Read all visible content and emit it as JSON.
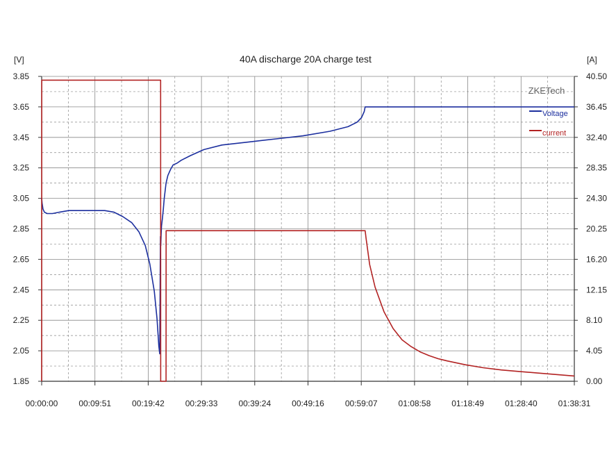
{
  "chart_data": {
    "type": "line",
    "title": "40A discharge 20A charge test",
    "left_unit": "[V]",
    "right_unit": "[A]",
    "watermark": "ZKETech",
    "x_ticks": [
      "00:00:00",
      "00:09:51",
      "00:19:42",
      "00:29:33",
      "00:39:24",
      "00:49:16",
      "00:59:07",
      "01:08:58",
      "01:18:49",
      "01:28:40",
      "01:38:31"
    ],
    "x_max_seconds": 5911,
    "y_left_ticks": [
      "3.85",
      "3.65",
      "3.45",
      "3.25",
      "3.05",
      "2.85",
      "2.65",
      "2.45",
      "2.25",
      "2.05",
      "1.85"
    ],
    "y_left_range": [
      1.85,
      3.85
    ],
    "y_right_ticks": [
      "40.50",
      "36.45",
      "32.40",
      "28.35",
      "24.30",
      "20.25",
      "16.20",
      "12.15",
      "8.10",
      "4.05",
      "0.00"
    ],
    "y_right_range": [
      0,
      40.5
    ],
    "grid": true,
    "legend_position": "top-right",
    "colors": {
      "voltage": "#1c2f9e",
      "current": "#b22222",
      "grid": "#888888",
      "axis": "#333333"
    },
    "series": [
      {
        "name": "Voltage",
        "axis": "left",
        "x": [
          0,
          5,
          15,
          30,
          60,
          120,
          200,
          300,
          400,
          500,
          600,
          700,
          800,
          900,
          1000,
          1080,
          1150,
          1200,
          1250,
          1280,
          1300,
          1310,
          1318,
          1322,
          1326,
          1330,
          1340,
          1350,
          1360,
          1380,
          1400,
          1430,
          1460,
          1500,
          1550,
          1650,
          1800,
          2000,
          2300,
          2600,
          2900,
          3200,
          3400,
          3500,
          3550,
          3580,
          3590,
          3600,
          3700,
          4000,
          4500,
          5000,
          5500,
          5911
        ],
        "values": [
          3.05,
          3.02,
          2.98,
          2.96,
          2.95,
          2.95,
          2.96,
          2.97,
          2.97,
          2.97,
          2.97,
          2.97,
          2.96,
          2.93,
          2.89,
          2.83,
          2.74,
          2.62,
          2.44,
          2.26,
          2.08,
          2.03,
          2.8,
          2.74,
          2.82,
          2.87,
          2.92,
          2.98,
          3.05,
          3.15,
          3.2,
          3.24,
          3.27,
          3.28,
          3.3,
          3.33,
          3.37,
          3.4,
          3.42,
          3.44,
          3.46,
          3.49,
          3.52,
          3.55,
          3.58,
          3.62,
          3.65,
          3.65,
          3.65,
          3.65,
          3.65,
          3.65,
          3.65,
          3.65
        ]
      },
      {
        "name": "current",
        "axis": "right",
        "x": [
          0,
          1,
          1320,
          1321,
          1380,
          1381,
          3590,
          3600,
          3640,
          3700,
          3800,
          3900,
          4000,
          4100,
          4200,
          4300,
          4400,
          4500,
          4700,
          4900,
          5100,
          5300,
          5500,
          5700,
          5911
        ],
        "values": [
          0,
          40.0,
          40.0,
          0,
          0,
          20.0,
          20.0,
          19.0,
          15.5,
          12.5,
          9.2,
          7.0,
          5.5,
          4.6,
          3.9,
          3.4,
          3.0,
          2.7,
          2.2,
          1.8,
          1.5,
          1.3,
          1.1,
          0.9,
          0.7
        ]
      }
    ]
  }
}
